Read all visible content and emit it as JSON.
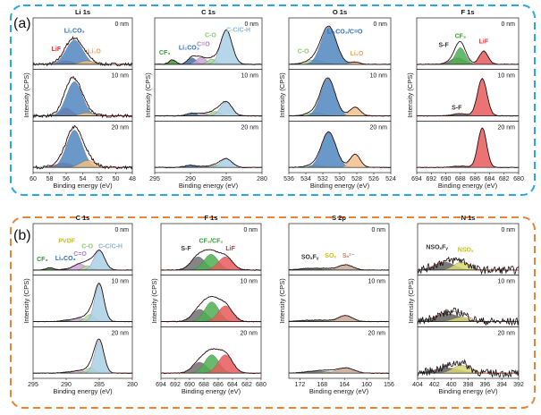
{
  "figure_labels": [
    "(a)",
    "(b)"
  ],
  "chart_data": [
    {
      "type": "area",
      "group": "(a)",
      "title": "Li 1s",
      "xlabel": "Binding energy (eV)",
      "ylabel": "Intensity (CPS)",
      "xlim": [
        60,
        48
      ],
      "ticks": [
        60,
        58,
        56,
        54,
        52,
        50,
        48
      ],
      "noise": 0.035,
      "depths": [
        "0 nm",
        "10 nm",
        "20 nm"
      ],
      "components": [
        {
          "name": "LiF",
          "color": "#e05a5a"
        },
        {
          "name": "Li₂CO₃",
          "color": "#4f86c0"
        },
        {
          "name": "Li₂O",
          "color": "#f0c080"
        }
      ],
      "peaks": [
        [
          [
            56,
            0.8,
            0.08
          ],
          [
            55,
            1.0,
            0.55
          ],
          [
            53.5,
            0.8,
            0.08
          ]
        ],
        [
          [
            56,
            0.7,
            0.18
          ],
          [
            55,
            0.95,
            0.78
          ],
          [
            53.5,
            0.8,
            0.07
          ]
        ],
        [
          [
            56.3,
            1.0,
            0.1
          ],
          [
            55,
            0.95,
            0.85
          ],
          [
            53.4,
            0.9,
            0.16
          ]
        ]
      ],
      "annotations": [
        {
          "text": "LiF",
          "ev": 57.2,
          "i": 0.3,
          "sub": 0,
          "color": "#e03030"
        },
        {
          "text": "Li₂CO₃",
          "ev": 55,
          "i": 0.72,
          "sub": 0,
          "color": "#2f6db5"
        },
        {
          "text": "Li₂O",
          "ev": 52.6,
          "i": 0.25,
          "sub": 0,
          "color": "#f0a050"
        }
      ]
    },
    {
      "type": "area",
      "group": "(a)",
      "title": "C 1s",
      "xlabel": "Binding energy (eV)",
      "ylabel": "Intensity (CPS)",
      "xlim": [
        295,
        280
      ],
      "ticks": [
        295,
        290,
        285,
        280
      ],
      "noise": 0.01,
      "depths": [
        "0 nm",
        "10 nm",
        "20 nm"
      ],
      "components": [
        {
          "name": "CF₃",
          "color": "#3a9a3a"
        },
        {
          "name": "Li₂CO₃",
          "color": "#3f6fa8"
        },
        {
          "name": "C=O",
          "color": "#c9a6d6"
        },
        {
          "name": "C-O",
          "color": "#a8d890"
        },
        {
          "name": "C-C/C-H",
          "color": "#a9cfe6"
        }
      ],
      "peaks": [
        [
          [
            292.5,
            0.5,
            0.1
          ],
          [
            289.8,
            0.6,
            0.15
          ],
          [
            288.5,
            0.7,
            0.16
          ],
          [
            287,
            0.6,
            0.12
          ],
          [
            285,
            0.8,
            0.78
          ]
        ],
        [
          [
            292.5,
            0.5,
            0
          ],
          [
            289.8,
            0.8,
            0.06
          ],
          [
            288,
            0.8,
            0.05
          ],
          [
            286.5,
            0.7,
            0.1
          ],
          [
            285,
            0.8,
            0.32
          ]
        ],
        [
          [
            292.5,
            0.5,
            0
          ],
          [
            290,
            0.8,
            0.05
          ],
          [
            288,
            0.8,
            0.02
          ],
          [
            286.5,
            0.7,
            0.05
          ],
          [
            285,
            0.8,
            0.2
          ]
        ]
      ],
      "annotations": [
        {
          "text": "CF₃",
          "ev": 293.6,
          "i": 0.22,
          "sub": 0,
          "color": "#3a9a3a"
        },
        {
          "text": "Li₂CO₃",
          "ev": 290.2,
          "i": 0.33,
          "sub": 0,
          "color": "#2f6db5"
        },
        {
          "text": "C=O",
          "ev": 288.2,
          "i": 0.42,
          "sub": 0,
          "color": "#b080c8"
        },
        {
          "text": "C-O",
          "ev": 287.2,
          "i": 0.62,
          "sub": 0,
          "color": "#8cc870"
        },
        {
          "text": "C-C/C-H",
          "ev": 283.3,
          "i": 0.74,
          "sub": 0,
          "color": "#8ab8d8"
        }
      ]
    },
    {
      "type": "area",
      "group": "(a)",
      "title": "O 1s",
      "xlabel": "Binding energy (eV)",
      "ylabel": "Intensity (CPS)",
      "xlim": [
        536,
        524
      ],
      "ticks": [
        536,
        534,
        532,
        530,
        528,
        526,
        524
      ],
      "noise": 0.008,
      "depths": [
        "0 nm",
        "10 nm",
        "20 nm"
      ],
      "components": [
        {
          "name": "C-O",
          "color": "#b7dc9a"
        },
        {
          "name": "Li₂CO₃/C=O",
          "color": "#4f86c0"
        },
        {
          "name": "Li₂O",
          "color": "#f2c08a"
        }
      ],
      "peaks": [
        [
          [
            533,
            1.0,
            0.1
          ],
          [
            531.3,
            0.9,
            0.85
          ],
          [
            528.2,
            0.6,
            0.05
          ]
        ],
        [
          [
            533,
            1.0,
            0.07
          ],
          [
            531.4,
            0.85,
            0.85
          ],
          [
            528.2,
            0.6,
            0.2
          ]
        ],
        [
          [
            533,
            1.0,
            0.05
          ],
          [
            531.3,
            0.85,
            0.8
          ],
          [
            528.2,
            0.6,
            0.3
          ]
        ]
      ],
      "annotations": [
        {
          "text": "C-O",
          "ev": 534.3,
          "i": 0.25,
          "sub": 0,
          "color": "#8cc870"
        },
        {
          "text": "Li₂CO₃/C=O",
          "ev": 529.4,
          "i": 0.7,
          "sub": 0,
          "color": "#2f6db5"
        },
        {
          "text": "Li₂O",
          "ev": 528,
          "i": 0.2,
          "sub": 0,
          "color": "#f0a050"
        }
      ]
    },
    {
      "type": "area",
      "group": "(a)",
      "title": "F 1s",
      "xlabel": "Binding energy (eV)",
      "ylabel": "Intensity (CPS)",
      "xlim": [
        694,
        680
      ],
      "ticks": [
        694,
        692,
        690,
        688,
        686,
        684,
        682,
        680
      ],
      "noise": 0.008,
      "depths": [
        "0 nm",
        "10 nm",
        "20 nm"
      ],
      "components": [
        {
          "name": "S-F",
          "color": "#707070"
        },
        {
          "name": "CF₃",
          "color": "#4caf50"
        },
        {
          "name": "LiF",
          "color": "#e85a5a"
        }
      ],
      "peaks": [
        [
          [
            688.4,
            1.0,
            0.15
          ],
          [
            688,
            0.7,
            0.38
          ],
          [
            684.8,
            0.6,
            0.3
          ]
        ],
        [
          [
            688,
            1.0,
            0.05
          ],
          [
            688,
            0.7,
            0
          ],
          [
            685,
            0.65,
            0.85
          ]
        ],
        [
          [
            688,
            1.0,
            0.03
          ],
          [
            688,
            0.7,
            0
          ],
          [
            685,
            0.6,
            0.9
          ]
        ]
      ],
      "annotations": [
        {
          "text": "S-F",
          "ev": 690.3,
          "i": 0.4,
          "sub": 0,
          "color": "#333333"
        },
        {
          "text": "CF₃",
          "ev": 688,
          "i": 0.6,
          "sub": 0,
          "color": "#3a9a3a"
        },
        {
          "text": "LiF",
          "ev": 684.8,
          "i": 0.48,
          "sub": 0,
          "color": "#e03030"
        },
        {
          "text": "S-F",
          "ev": 688.5,
          "i": 0.14,
          "sub": 1,
          "color": "#333333"
        }
      ]
    },
    {
      "type": "area",
      "group": "(b)",
      "title": "C 1s",
      "xlabel": "Binding energy (eV)",
      "ylabel": "Intensity (CPS)",
      "xlim": [
        295,
        280
      ],
      "ticks": [
        295,
        290,
        285,
        280
      ],
      "noise": 0.006,
      "depths": [
        "0 nm",
        "10 nm",
        "20 nm"
      ],
      "components": [
        {
          "name": "CF₃",
          "color": "#3a9a3a"
        },
        {
          "name": "PVDF",
          "color": "#e0dc40"
        },
        {
          "name": "Li₂CO₃",
          "color": "#3f6fa8"
        },
        {
          "name": "C=O",
          "color": "#c9a6d6"
        },
        {
          "name": "C-O",
          "color": "#b7dc9a"
        },
        {
          "name": "C-C/C-H",
          "color": "#a9cfe6"
        }
      ],
      "peaks": [
        [
          [
            292.5,
            0.6,
            0.05
          ],
          [
            286.3,
            0.5,
            0.05
          ],
          [
            290.2,
            0.6,
            0.02
          ],
          [
            288,
            0.9,
            0.14
          ],
          [
            286.8,
            0.6,
            0.1
          ],
          [
            285,
            0.8,
            0.45
          ]
        ],
        [
          [
            292.5,
            0.6,
            0
          ],
          [
            286.3,
            0.5,
            0.02
          ],
          [
            290,
            0.8,
            0.03
          ],
          [
            288,
            0.9,
            0.08
          ],
          [
            286.4,
            0.7,
            0.16
          ],
          [
            285,
            0.7,
            0.85
          ]
        ],
        [
          [
            292.5,
            0.6,
            0
          ],
          [
            286,
            0.5,
            0.04
          ],
          [
            290,
            0.8,
            0.02
          ],
          [
            288,
            0.9,
            0.06
          ],
          [
            286.3,
            0.7,
            0.12
          ],
          [
            285,
            0.7,
            0.75
          ]
        ]
      ],
      "annotations": [
        {
          "text": "CF₃",
          "ev": 293.6,
          "i": 0.2,
          "sub": 0,
          "color": "#3a9a3a"
        },
        {
          "text": "PVDF",
          "ev": 289.9,
          "i": 0.62,
          "sub": 0,
          "color": "#c8c020"
        },
        {
          "text": "Li₂CO₃",
          "ev": 290.1,
          "i": 0.22,
          "sub": 0,
          "color": "#2f6db5"
        },
        {
          "text": "C=O",
          "ev": 287.9,
          "i": 0.32,
          "sub": 0,
          "color": "#b080c8"
        },
        {
          "text": "C-O",
          "ev": 286.8,
          "i": 0.5,
          "sub": 0,
          "color": "#8cc870"
        },
        {
          "text": "C-C/C-H",
          "ev": 283.3,
          "i": 0.5,
          "sub": 0,
          "color": "#8ab8d8"
        }
      ]
    },
    {
      "type": "area",
      "group": "(b)",
      "title": "F 1s",
      "xlabel": "Binding energy (eV)",
      "ylabel": "Intensity (CPS)",
      "xlim": [
        694,
        680
      ],
      "ticks": [
        694,
        692,
        690,
        688,
        686,
        684,
        682,
        680
      ],
      "noise": 0.01,
      "depths": [
        "0 nm",
        "10 nm",
        "20 nm"
      ],
      "components": [
        {
          "name": "S-F",
          "color": "#707070"
        },
        {
          "name": "CF₃/CF₂",
          "color": "#4caf50"
        },
        {
          "name": "LiF",
          "color": "#e85a5a"
        }
      ],
      "peaks": [
        [
          [
            688.8,
            1.0,
            0.3
          ],
          [
            687,
            1.0,
            0.36
          ],
          [
            685,
            1.0,
            0.3
          ]
        ],
        [
          [
            688.6,
            1.0,
            0.28
          ],
          [
            686.9,
            1.0,
            0.45
          ],
          [
            685,
            1.0,
            0.36
          ]
        ],
        [
          [
            688.6,
            1.0,
            0.25
          ],
          [
            686.9,
            1.0,
            0.42
          ],
          [
            685,
            1.0,
            0.42
          ]
        ]
      ],
      "annotations": [
        {
          "text": "S-F",
          "ev": 690.5,
          "i": 0.45,
          "sub": 0,
          "color": "#333333"
        },
        {
          "text": "CF₃/CF₂",
          "ev": 687,
          "i": 0.62,
          "sub": 0,
          "color": "#3a9a3a"
        },
        {
          "text": "LiF",
          "ev": 684.3,
          "i": 0.45,
          "sub": 0,
          "color": "#e03030"
        }
      ]
    },
    {
      "type": "area",
      "group": "(b)",
      "title": "S 2p",
      "xlabel": "Binding energy (eV)",
      "ylabel": "Intensity (CPS)",
      "xlim": [
        174,
        156
      ],
      "ticks": [
        172,
        168,
        164,
        160,
        156
      ],
      "noise": 0.008,
      "depths": [
        "0 nm",
        "10 nm",
        "20 nm"
      ],
      "components": [
        {
          "name": "SOₓFᵧ",
          "color": "#707070"
        },
        {
          "name": "SOₓ",
          "color": "#c8d870"
        },
        {
          "name": "Sₙ²⁻",
          "color": "#c8a898"
        }
      ],
      "peaks": [
        [
          [
            170,
            2.0,
            0.04
          ],
          [
            167,
            1.2,
            0.02
          ],
          [
            163.8,
            1.3,
            0.12
          ]
        ],
        [
          [
            170,
            2.0,
            0.03
          ],
          [
            167,
            1.2,
            0.02
          ],
          [
            163.8,
            1.2,
            0.14
          ]
        ],
        [
          [
            169,
            2.0,
            0.05
          ],
          [
            167,
            1.2,
            0.03
          ],
          [
            163.8,
            1.5,
            0.12
          ]
        ]
      ],
      "annotations": [
        {
          "text": "SOₓFᵧ",
          "ev": 170.2,
          "i": 0.25,
          "sub": 0,
          "color": "#333333"
        },
        {
          "text": "SOₓ",
          "ev": 166.5,
          "i": 0.28,
          "sub": 0,
          "color": "#c8c020"
        },
        {
          "text": "Sₙ²⁻",
          "ev": 163.3,
          "i": 0.28,
          "sub": 0,
          "color": "#c08878"
        }
      ]
    },
    {
      "type": "area",
      "group": "(b)",
      "title": "N 1s",
      "xlabel": "Binding energy (eV)",
      "ylabel": "Intensity (CPS)",
      "xlim": [
        404,
        392
      ],
      "ticks": [
        404,
        402,
        400,
        398,
        396,
        394,
        392
      ],
      "noise": 0.09,
      "depths": [
        "0 nm",
        "10 nm",
        "20 nm"
      ],
      "components": [
        {
          "name": "NSOₓFᵧ",
          "color": "#606060"
        },
        {
          "name": "NSOₓ",
          "color": "#d8d870"
        }
      ],
      "peaks": [
        [
          [
            400.8,
            1.2,
            0.18
          ],
          [
            398.8,
            0.9,
            0.18
          ]
        ],
        [
          [
            400.5,
            1.5,
            0.18
          ],
          [
            398.8,
            1.0,
            0.1
          ]
        ],
        [
          [
            400.5,
            1.5,
            0.12
          ],
          [
            398.8,
            1.0,
            0.18
          ]
        ]
      ],
      "annotations": [
        {
          "text": "NSOₓFᵧ",
          "ev": 401.7,
          "i": 0.48,
          "sub": 0,
          "color": "#333333"
        },
        {
          "text": "NSOₓ",
          "ev": 398.3,
          "i": 0.42,
          "sub": 0,
          "color": "#c8c020"
        }
      ]
    }
  ]
}
